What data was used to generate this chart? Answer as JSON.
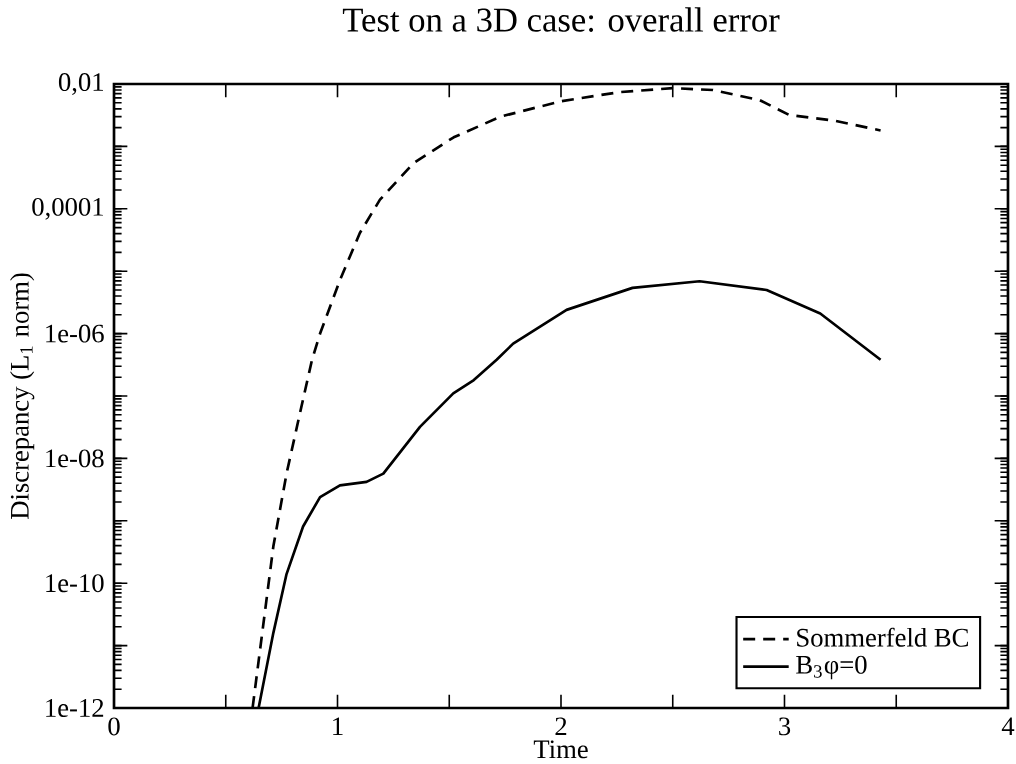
{
  "chart_data": {
    "type": "line",
    "title": "Test on a 3D case: overall error",
    "xlabel": "Time",
    "ylabel": "Discrepancy (L$_{1}$ norm)",
    "log": "y",
    "legend": "bottom right",
    "grid": false,
    "marker": "none",
    "xlim": [
      0,
      4
    ],
    "ylim": [
      1e-12,
      0.01
    ],
    "xticks": [
      0,
      {
        "value": 0.5,
        "label": null
      },
      1,
      {
        "value": 1.5,
        "label": null
      },
      2,
      {
        "value": 2.5,
        "label": null
      },
      3,
      {
        "value": 3.5,
        "label": null
      },
      4
    ],
    "yticks": [
      {
        "value": 1e-12,
        "label": "1e-12"
      },
      {
        "value": 1e-11,
        "label": null
      },
      {
        "value": 1e-10,
        "label": "1e-10"
      },
      {
        "value": 1e-09,
        "label": null
      },
      {
        "value": 1e-08,
        "label": "1e-08"
      },
      {
        "value": 1e-07,
        "label": null
      },
      {
        "value": 1e-06,
        "label": "1e-06"
      },
      {
        "value": 1e-05,
        "label": null
      },
      {
        "value": 0.0001,
        "label": "0,0001"
      },
      {
        "value": 0.001,
        "label": null
      },
      {
        "value": 0.01,
        "label": "0,01"
      }
    ],
    "series": [
      {
        "name": "Sommerfeld BC",
        "color": "#000000",
        "line_style": "dashed",
        "x": [
          0.62,
          0.713,
          0.772,
          0.832,
          0.886,
          0.922,
          1.011,
          1.1,
          1.19,
          1.34,
          1.52,
          1.73,
          2.0,
          2.26,
          2.5,
          2.68,
          2.89,
          3.02,
          3.22,
          3.43
        ],
        "values": [
          1e-12,
          3.9e-10,
          5.7e-09,
          5.3e-08,
          3.8e-07,
          1e-06,
          7.2e-06,
          4.1e-05,
          0.00014,
          0.00054,
          0.0014,
          0.003,
          0.0053,
          0.0074,
          0.0086,
          0.008,
          0.0055,
          0.0032,
          0.0026,
          0.0018
        ]
      },
      {
        "name": "B$_{3}$φ=0",
        "color": "#000000",
        "line_style": "solid",
        "x": [
          0.647,
          0.713,
          0.772,
          0.846,
          0.922,
          1.011,
          1.13,
          1.205,
          1.369,
          1.518,
          1.61,
          1.712,
          1.786,
          2.025,
          2.32,
          2.62,
          2.92,
          3.16,
          3.43
        ],
        "values": [
          1e-12,
          1.6e-11,
          1.4e-10,
          8.1e-10,
          2.4e-09,
          3.7e-09,
          4.2e-09,
          5.7e-09,
          3.2e-08,
          1.1e-07,
          1.8e-07,
          3.8e-07,
          6.9e-07,
          2.4e-06,
          5.4e-06,
          6.9e-06,
          5e-06,
          2.1e-06,
          3.8e-07
        ]
      }
    ]
  }
}
